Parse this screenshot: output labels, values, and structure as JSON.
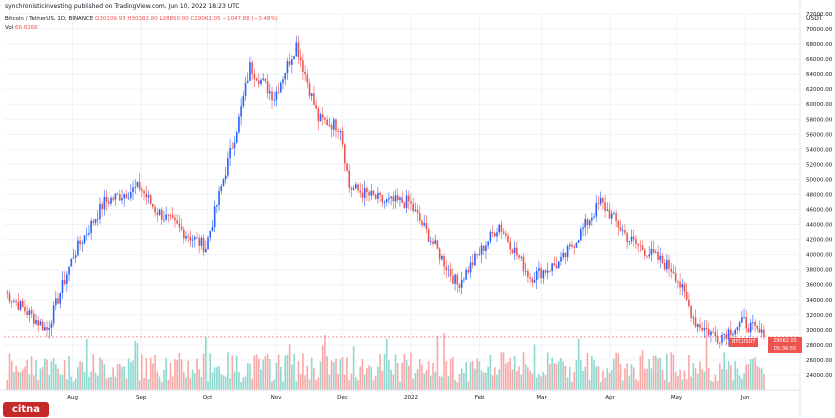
{
  "top_note": "synchronisticinvesting published on TradingView.com, Jun 10, 2022 18:23 UTC",
  "header": {
    "pair": "Bitcoin / TetherUS, 1D, BINANCE",
    "ohlc": "O30109.93 H30382.80 L28850.00 C29062.05 −1047.88 (−3.48%)"
  },
  "volume": {
    "label": "Vol",
    "value": "66.826K"
  },
  "price_tag": {
    "symbol": "BTCUSDT",
    "price": "29062.05",
    "countdown": "05:36:55"
  },
  "logo_text": "citna",
  "colors": {
    "up": "#2962ff",
    "down": "#ef5350",
    "vol_up": "#8fd8cf",
    "vol_down": "#f7a9a7",
    "grid": "#f0f3fa",
    "text": "#131722"
  },
  "chart_data": {
    "type": "candlestick",
    "title": "Bitcoin / TetherUS, 1D, BINANCE",
    "yunit": "USDT",
    "ylim": [
      22000,
      72000
    ],
    "y_ticks": [
      "24000.00",
      "26000.00",
      "28000.00",
      "30000.00",
      "32000.00",
      "34000.00",
      "36000.00",
      "38000.00",
      "40000.00",
      "42000.00",
      "44000.00",
      "46000.00",
      "48000.00",
      "50000.00",
      "52000.00",
      "54000.00",
      "56000.00",
      "58000.00",
      "60000.00",
      "62000.00",
      "64000.00",
      "66000.00",
      "68000.00",
      "70000.00",
      "72000.00"
    ],
    "x_ticks": [
      "Aug",
      "Sep",
      "Oct",
      "Nov",
      "Dec",
      "2022",
      "Feb",
      "Mar",
      "Apr",
      "May",
      "Jun"
    ],
    "grid": true,
    "approx_close_path": [
      {
        "date": "2021-07-01",
        "close": 35000
      },
      {
        "date": "2021-07-20",
        "close": 30000
      },
      {
        "date": "2021-08-01",
        "close": 40000
      },
      {
        "date": "2021-08-15",
        "close": 47000
      },
      {
        "date": "2021-08-31",
        "close": 49000
      },
      {
        "date": "2021-09-07",
        "close": 46000
      },
      {
        "date": "2021-09-20",
        "close": 43000
      },
      {
        "date": "2021-09-30",
        "close": 41000
      },
      {
        "date": "2021-10-15",
        "close": 58000
      },
      {
        "date": "2021-10-20",
        "close": 65000
      },
      {
        "date": "2021-10-31",
        "close": 61000
      },
      {
        "date": "2021-11-10",
        "close": 68000
      },
      {
        "date": "2021-11-20",
        "close": 58000
      },
      {
        "date": "2021-11-30",
        "close": 57000
      },
      {
        "date": "2021-12-04",
        "close": 49000
      },
      {
        "date": "2021-12-20",
        "close": 47000
      },
      {
        "date": "2021-12-31",
        "close": 47000
      },
      {
        "date": "2022-01-10",
        "close": 42000
      },
      {
        "date": "2022-01-22",
        "close": 36000
      },
      {
        "date": "2022-02-10",
        "close": 44000
      },
      {
        "date": "2022-02-24",
        "close": 37000
      },
      {
        "date": "2022-03-10",
        "close": 39000
      },
      {
        "date": "2022-03-28",
        "close": 47000
      },
      {
        "date": "2022-04-10",
        "close": 42000
      },
      {
        "date": "2022-04-30",
        "close": 38000
      },
      {
        "date": "2022-05-10",
        "close": 31000
      },
      {
        "date": "2022-05-20",
        "close": 29000
      },
      {
        "date": "2022-06-01",
        "close": 31000
      },
      {
        "date": "2022-06-10",
        "close": 29062.05
      }
    ],
    "last_price": 29062.05
  }
}
